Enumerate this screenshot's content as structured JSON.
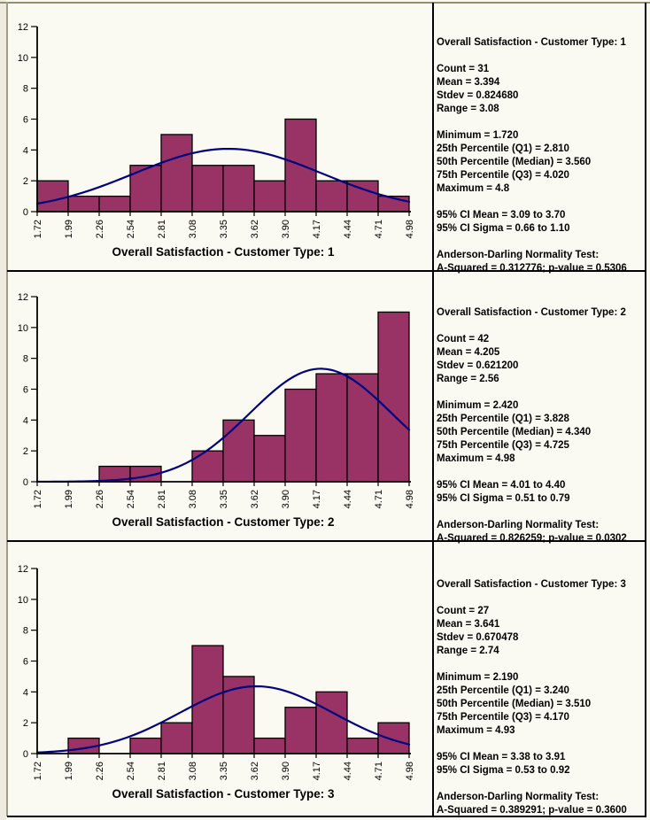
{
  "page": {
    "background": "#FBFAF2",
    "frame_color": "#93906F",
    "grid_color": "#000000"
  },
  "panels": [
    {
      "title": "Overall Satisfaction - Customer Type: 1",
      "stats": {
        "summary": [
          "Count = 31",
          "Mean = 3.394",
          "Stdev = 0.824680",
          "Range = 3.08"
        ],
        "quartiles": [
          "Minimum = 1.720",
          "25th Percentile (Q1) = 2.810",
          "50th Percentile (Median) = 3.560",
          "75th Percentile (Q3) = 4.020",
          "Maximum = 4.8"
        ],
        "confidence": [
          "95% CI Mean = 3.09 to 3.70",
          "95% CI Sigma = 0.66 to 1.10"
        ],
        "normality": [
          "Anderson-Darling Normality Test:",
          "A-Squared = 0.312776; p-value = 0.5306"
        ]
      }
    },
    {
      "title": "Overall Satisfaction - Customer Type: 2",
      "stats": {
        "summary": [
          "Count = 42",
          "Mean = 4.205",
          "Stdev = 0.621200",
          "Range = 2.56"
        ],
        "quartiles": [
          "Minimum = 2.420",
          "25th Percentile (Q1) = 3.828",
          "50th Percentile (Median) = 4.340",
          "75th Percentile (Q3) = 4.725",
          "Maximum = 4.98"
        ],
        "confidence": [
          "95% CI Mean = 4.01 to 4.40",
          "95% CI Sigma = 0.51 to 0.79"
        ],
        "normality": [
          "Anderson-Darling Normality Test:",
          "A-Squared = 0.826259; p-value = 0.0302"
        ]
      }
    },
    {
      "title": "Overall Satisfaction - Customer Type: 3",
      "stats": {
        "summary": [
          "Count = 27",
          "Mean = 3.641",
          "Stdev = 0.670478",
          "Range = 2.74"
        ],
        "quartiles": [
          "Minimum = 2.190",
          "25th Percentile (Q1) = 3.240",
          "50th Percentile (Median) = 3.510",
          "75th Percentile (Q3) = 4.170",
          "Maximum = 4.93"
        ],
        "confidence": [
          "95% CI Mean = 3.38 to 3.91",
          "95% CI Sigma = 0.53 to 0.92"
        ],
        "normality": [
          "Anderson-Darling Normality Test:",
          "A-Squared = 0.389291; p-value = 0.3600"
        ]
      }
    }
  ],
  "chart_data": [
    {
      "type": "bar",
      "subtype": "histogram_with_normal_curve",
      "title": "Overall Satisfaction - Customer Type: 1",
      "xlabel": "Overall Satisfaction - Customer Type: 1",
      "ylabel": "",
      "bin_edges": [
        1.72,
        1.99,
        2.26,
        2.54,
        2.81,
        3.08,
        3.35,
        3.62,
        3.9,
        4.17,
        4.44,
        4.71,
        4.98
      ],
      "bin_labels": [
        "1.72",
        "1.99",
        "2.26",
        "2.54",
        "2.81",
        "3.08",
        "3.35",
        "3.62",
        "3.90",
        "4.17",
        "4.44",
        "4.71",
        "4.98"
      ],
      "counts": [
        2,
        1,
        1,
        3,
        5,
        3,
        3,
        2,
        6,
        2,
        2,
        1
      ],
      "y_ticks": [
        0,
        2,
        4,
        6,
        8,
        10,
        12
      ],
      "ylim": [
        0,
        12
      ],
      "xlim": [
        1.72,
        4.98
      ],
      "curve": {
        "kind": "normal",
        "mean": 3.394,
        "stdev": 0.82468,
        "n": 31
      },
      "bar_color": "#993366",
      "bar_border_color": "#000000",
      "curve_color": "#000080",
      "grid": false,
      "legend": "none"
    },
    {
      "type": "bar",
      "subtype": "histogram_with_normal_curve",
      "title": "Overall Satisfaction - Customer Type: 2",
      "xlabel": "Overall Satisfaction - Customer Type: 2",
      "ylabel": "",
      "bin_edges": [
        1.72,
        1.99,
        2.26,
        2.54,
        2.81,
        3.08,
        3.35,
        3.62,
        3.9,
        4.17,
        4.44,
        4.71,
        4.98
      ],
      "bin_labels": [
        "1.72",
        "1.99",
        "2.26",
        "2.54",
        "2.81",
        "3.08",
        "3.35",
        "3.62",
        "3.90",
        "4.17",
        "4.44",
        "4.71",
        "4.98"
      ],
      "counts": [
        0,
        0,
        1,
        1,
        0,
        2,
        4,
        3,
        6,
        7,
        7,
        11
      ],
      "y_ticks": [
        0,
        2,
        4,
        6,
        8,
        10,
        12
      ],
      "ylim": [
        0,
        12
      ],
      "xlim": [
        1.72,
        4.98
      ],
      "curve": {
        "kind": "normal",
        "mean": 4.205,
        "stdev": 0.6212,
        "n": 42
      },
      "bar_color": "#993366",
      "bar_border_color": "#000000",
      "curve_color": "#000080",
      "grid": false,
      "legend": "none"
    },
    {
      "type": "bar",
      "subtype": "histogram_with_normal_curve",
      "title": "Overall Satisfaction - Customer Type: 3",
      "xlabel": "Overall Satisfaction - Customer Type: 3",
      "ylabel": "",
      "bin_edges": [
        1.72,
        1.99,
        2.26,
        2.54,
        2.81,
        3.08,
        3.35,
        3.62,
        3.9,
        4.17,
        4.44,
        4.71,
        4.98
      ],
      "bin_labels": [
        "1.72",
        "1.99",
        "2.26",
        "2.54",
        "2.81",
        "3.08",
        "3.35",
        "3.62",
        "3.90",
        "4.17",
        "4.44",
        "4.71",
        "4.98"
      ],
      "counts": [
        0,
        1,
        0,
        1,
        2,
        7,
        5,
        1,
        3,
        4,
        1,
        2
      ],
      "y_ticks": [
        0,
        2,
        4,
        6,
        8,
        10,
        12
      ],
      "ylim": [
        0,
        12
      ],
      "xlim": [
        1.72,
        4.98
      ],
      "curve": {
        "kind": "normal",
        "mean": 3.641,
        "stdev": 0.670478,
        "n": 27
      },
      "bar_color": "#993366",
      "bar_border_color": "#000000",
      "curve_color": "#000080",
      "grid": false,
      "legend": "none"
    }
  ]
}
